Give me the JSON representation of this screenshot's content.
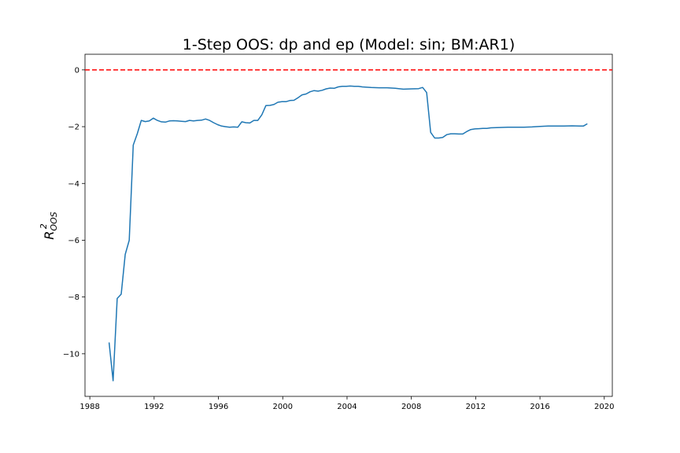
{
  "chart_data": {
    "type": "line",
    "title": "1-Step OOS: dp and ep (Model: sin; BM:AR1)",
    "xlabel": "",
    "ylabel": "R",
    "ylabel_sup": "2",
    "ylabel_sub": "OOS",
    "xlim": [
      1987.7,
      2020.5
    ],
    "ylim": [
      -11.5,
      0.55
    ],
    "x_ticks": [
      1988,
      1992,
      1996,
      2000,
      2004,
      2008,
      2012,
      2016,
      2020
    ],
    "y_ticks": [
      0,
      -2,
      -4,
      -6,
      -8,
      -10
    ],
    "reference_line": {
      "y": 0,
      "color": "#ff0000",
      "style": "dashed"
    },
    "series": [
      {
        "color": "#1f77b4",
        "x": [
          1989.2,
          1989.45,
          1989.7,
          1989.95,
          1990.2,
          1990.45,
          1990.7,
          1990.95,
          1991.2,
          1991.45,
          1991.7,
          1991.95,
          1992.2,
          1992.45,
          1992.7,
          1992.95,
          1993.2,
          1993.45,
          1993.7,
          1993.95,
          1994.2,
          1994.45,
          1994.7,
          1994.95,
          1995.2,
          1995.45,
          1995.7,
          1995.95,
          1996.2,
          1996.45,
          1996.7,
          1996.95,
          1997.2,
          1997.45,
          1997.7,
          1997.95,
          1998.2,
          1998.45,
          1998.7,
          1998.95,
          1999.2,
          1999.45,
          1999.7,
          1999.95,
          2000.2,
          2000.45,
          2000.7,
          2000.95,
          2001.2,
          2001.45,
          2001.7,
          2001.95,
          2002.2,
          2002.45,
          2002.7,
          2002.95,
          2003.2,
          2003.45,
          2003.7,
          2003.95,
          2004.2,
          2004.45,
          2004.7,
          2004.95,
          2005.5,
          2006.0,
          2006.5,
          2007.0,
          2007.5,
          2008.0,
          2008.45,
          2008.7,
          2008.95,
          2009.2,
          2009.45,
          2009.7,
          2009.95,
          2010.2,
          2010.45,
          2010.7,
          2010.95,
          2011.2,
          2011.45,
          2011.7,
          2011.95,
          2012.2,
          2012.45,
          2012.7,
          2012.95,
          2013.5,
          2014.0,
          2014.5,
          2015.0,
          2015.5,
          2016.0,
          2016.5,
          2017.0,
          2017.5,
          2018.0,
          2018.45,
          2018.7,
          2018.95
        ],
        "y": [
          -9.6,
          -10.95,
          -8.05,
          -7.9,
          -6.5,
          -6.0,
          -2.65,
          -2.25,
          -1.78,
          -1.82,
          -1.8,
          -1.7,
          -1.78,
          -1.83,
          -1.84,
          -1.8,
          -1.79,
          -1.8,
          -1.81,
          -1.82,
          -1.78,
          -1.8,
          -1.78,
          -1.77,
          -1.73,
          -1.78,
          -1.86,
          -1.93,
          -1.98,
          -2.0,
          -2.02,
          -2.01,
          -2.02,
          -1.83,
          -1.86,
          -1.87,
          -1.78,
          -1.78,
          -1.58,
          -1.26,
          -1.25,
          -1.22,
          -1.14,
          -1.12,
          -1.12,
          -1.08,
          -1.07,
          -0.98,
          -0.88,
          -0.85,
          -0.77,
          -0.73,
          -0.75,
          -0.72,
          -0.67,
          -0.64,
          -0.65,
          -0.6,
          -0.58,
          -0.58,
          -0.57,
          -0.58,
          -0.58,
          -0.6,
          -0.62,
          -0.63,
          -0.63,
          -0.65,
          -0.68,
          -0.67,
          -0.66,
          -0.62,
          -0.8,
          -2.2,
          -2.4,
          -2.4,
          -2.38,
          -2.28,
          -2.25,
          -2.25,
          -2.26,
          -2.26,
          -2.17,
          -2.1,
          -2.08,
          -2.07,
          -2.06,
          -2.06,
          -2.04,
          -2.03,
          -2.02,
          -2.02,
          -2.02,
          -2.01,
          -1.99,
          -1.98,
          -1.98,
          -1.98,
          -1.97,
          -1.98,
          -1.98,
          -1.9
        ]
      }
    ]
  }
}
